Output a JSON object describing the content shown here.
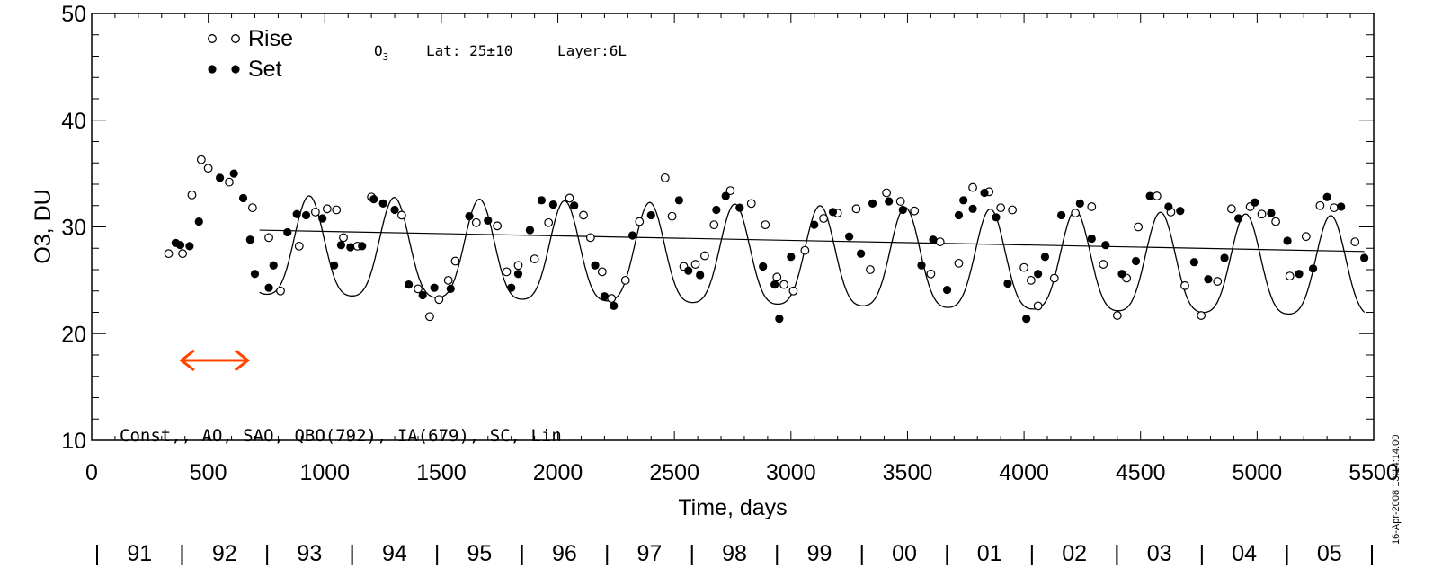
{
  "chart_data": {
    "type": "scatter",
    "title": "O3   Lat: 25±10   Layer:6L",
    "title_parts": {
      "species": "O",
      "species_sub": "3",
      "lat": "Lat: 25±10",
      "layer": "Layer:6L"
    },
    "xlabel": "Time, days",
    "ylabel": "O3, DU",
    "xlim": [
      0,
      5500
    ],
    "ylim": [
      10,
      50
    ],
    "x_ticks": [
      0,
      500,
      1000,
      1500,
      2000,
      2500,
      3000,
      3500,
      4000,
      4500,
      5000,
      5500
    ],
    "y_ticks": [
      10,
      20,
      30,
      40,
      50
    ],
    "year_labels": [
      "91",
      "92",
      "93",
      "94",
      "95",
      "96",
      "97",
      "98",
      "99",
      "00",
      "01",
      "02",
      "03",
      "04",
      "05"
    ],
    "model_label": "Const,, AO, SAO, QBO(792), IA(679), SC, Lin",
    "timestamp": "16-Apr-2008 13:14:14.00",
    "legend": [
      {
        "name": "Rise",
        "marker": "open-circle"
      },
      {
        "name": "Set",
        "marker": "filled-circle"
      }
    ],
    "legend_position": "top-left",
    "arrow": {
      "x_from": 385,
      "x_to": 670,
      "y": 17.5,
      "color": "#ff4500"
    },
    "trend_line": {
      "x": [
        720,
        5460
      ],
      "y": [
        29.7,
        27.7
      ]
    },
    "fit_curve": {
      "x_start": 720,
      "x_end": 5460,
      "period_days": 365.25,
      "trend_start": 29.7,
      "trend_end": 27.7,
      "peak": 32.5,
      "trough": 23.2,
      "trough_day_offset": 20
    },
    "series": [
      {
        "name": "Rise",
        "marker": "open-circle",
        "x": [
          330,
          390,
          430,
          470,
          500,
          590,
          690,
          760,
          810,
          890,
          960,
          1010,
          1050,
          1080,
          1140,
          1200,
          1330,
          1400,
          1450,
          1490,
          1530,
          1560,
          1650,
          1740,
          1780,
          1830,
          1900,
          1960,
          2050,
          2110,
          2140,
          2190,
          2230,
          2290,
          2350,
          2460,
          2490,
          2540,
          2590,
          2630,
          2670,
          2740,
          2830,
          2890,
          2940,
          2970,
          3010,
          3060,
          3140,
          3200,
          3280,
          3340,
          3410,
          3470,
          3530,
          3600,
          3640,
          3720,
          3780,
          3850,
          3900,
          3950,
          4000,
          4030,
          4060,
          4130,
          4220,
          4290,
          4340,
          4400,
          4440,
          4490,
          4570,
          4630,
          4690,
          4760,
          4830,
          4890,
          4970,
          5020,
          5080,
          5140,
          5210,
          5270,
          5330,
          5420
        ],
        "y": [
          27.5,
          27.5,
          33.0,
          36.3,
          35.5,
          34.2,
          31.8,
          29.0,
          24.0,
          28.2,
          31.4,
          31.7,
          31.6,
          29.0,
          28.2,
          32.8,
          31.1,
          24.2,
          21.6,
          23.2,
          25.0,
          26.8,
          30.4,
          30.1,
          25.8,
          26.4,
          27.0,
          30.4,
          32.7,
          31.1,
          29.0,
          25.8,
          23.3,
          25.0,
          30.5,
          34.6,
          31.0,
          26.3,
          26.5,
          27.3,
          30.2,
          33.4,
          32.2,
          30.2,
          25.3,
          24.6,
          24.0,
          27.8,
          30.8,
          31.3,
          31.7,
          26.0,
          33.2,
          32.4,
          31.5,
          25.6,
          28.6,
          26.6,
          33.7,
          33.3,
          31.8,
          31.6,
          26.2,
          25.0,
          22.6,
          25.2,
          31.3,
          31.9,
          26.5,
          21.7,
          25.2,
          30.0,
          32.9,
          31.4,
          24.5,
          21.7,
          24.9,
          31.7,
          31.9,
          31.2,
          30.5,
          25.4,
          29.1,
          32.0,
          31.8,
          28.6
        ]
      },
      {
        "name": "Set",
        "marker": "filled-circle",
        "x": [
          360,
          380,
          420,
          460,
          550,
          610,
          650,
          680,
          700,
          760,
          780,
          840,
          880,
          920,
          990,
          1040,
          1070,
          1110,
          1160,
          1210,
          1250,
          1300,
          1360,
          1420,
          1470,
          1540,
          1620,
          1700,
          1800,
          1830,
          1880,
          1930,
          1980,
          2070,
          2160,
          2200,
          2240,
          2320,
          2400,
          2520,
          2560,
          2610,
          2680,
          2720,
          2780,
          2880,
          2930,
          2950,
          3000,
          3100,
          3180,
          3250,
          3300,
          3350,
          3420,
          3480,
          3560,
          3610,
          3670,
          3720,
          3740,
          3780,
          3830,
          3880,
          3930,
          4010,
          4060,
          4090,
          4160,
          4240,
          4290,
          4350,
          4420,
          4480,
          4540,
          4620,
          4670,
          4730,
          4790,
          4860,
          4920,
          4990,
          5060,
          5130,
          5180,
          5240,
          5300,
          5360,
          5460
        ],
        "y": [
          28.5,
          28.3,
          28.2,
          30.5,
          34.6,
          35.0,
          32.7,
          28.8,
          25.6,
          24.3,
          26.4,
          29.5,
          31.2,
          31.1,
          30.8,
          26.4,
          28.3,
          28.1,
          28.2,
          32.6,
          32.2,
          31.6,
          24.6,
          23.6,
          24.3,
          24.2,
          31.0,
          30.6,
          24.3,
          25.6,
          29.7,
          32.5,
          32.1,
          32.0,
          26.4,
          23.5,
          22.6,
          29.2,
          31.1,
          32.5,
          25.9,
          25.5,
          31.6,
          32.9,
          31.8,
          26.3,
          24.6,
          21.4,
          27.2,
          30.2,
          31.4,
          29.1,
          27.5,
          32.2,
          32.4,
          31.6,
          26.4,
          28.8,
          24.1,
          31.1,
          32.5,
          31.7,
          33.2,
          30.9,
          24.7,
          21.4,
          25.6,
          27.2,
          31.1,
          32.2,
          28.9,
          28.3,
          25.6,
          26.8,
          32.9,
          31.9,
          31.5,
          26.7,
          25.1,
          27.1,
          30.8,
          32.3,
          31.3,
          28.7,
          25.6,
          26.1,
          32.8,
          31.9,
          27.1
        ]
      }
    ]
  }
}
